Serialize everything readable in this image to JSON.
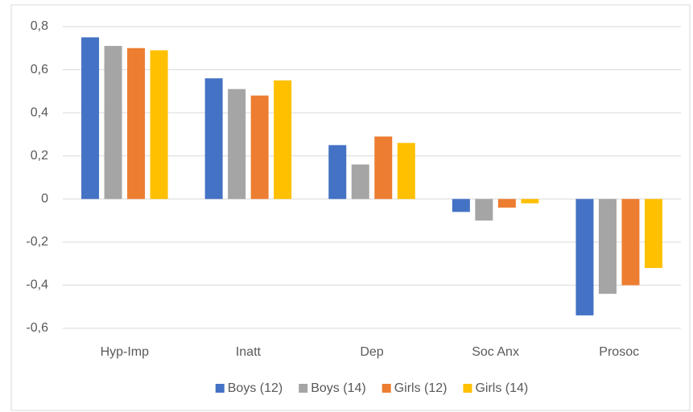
{
  "chart_data": {
    "type": "bar",
    "categories": [
      "Hyp-Imp",
      "Inatt",
      "Dep",
      "Soc Anx",
      "Prosoc"
    ],
    "series": [
      {
        "name": "Boys (12)",
        "color": "#4472c4",
        "values": [
          0.75,
          0.56,
          0.25,
          -0.06,
          -0.54
        ]
      },
      {
        "name": "Boys (14)",
        "color": "#a5a5a5",
        "values": [
          0.71,
          0.51,
          0.16,
          -0.1,
          -0.44
        ]
      },
      {
        "name": "Girls (12)",
        "color": "#ed7d31",
        "values": [
          0.7,
          0.48,
          0.29,
          -0.04,
          -0.4
        ]
      },
      {
        "name": "Girls (14)",
        "color": "#ffc000",
        "values": [
          0.69,
          0.55,
          0.26,
          -0.02,
          -0.32
        ]
      }
    ],
    "ylim": [
      -0.6,
      0.8
    ],
    "yticks": [
      {
        "value": -0.6,
        "label": "-0,6"
      },
      {
        "value": -0.4,
        "label": "-0,4"
      },
      {
        "value": -0.2,
        "label": "-0,2"
      },
      0,
      {
        "value": 0.2,
        "label": "0,2"
      },
      {
        "value": 0.4,
        "label": "0,4"
      },
      {
        "value": 0.6,
        "label": "0,6"
      },
      {
        "value": 0.8,
        "label": "0,8"
      }
    ],
    "grid": true,
    "legend": "bottom"
  }
}
